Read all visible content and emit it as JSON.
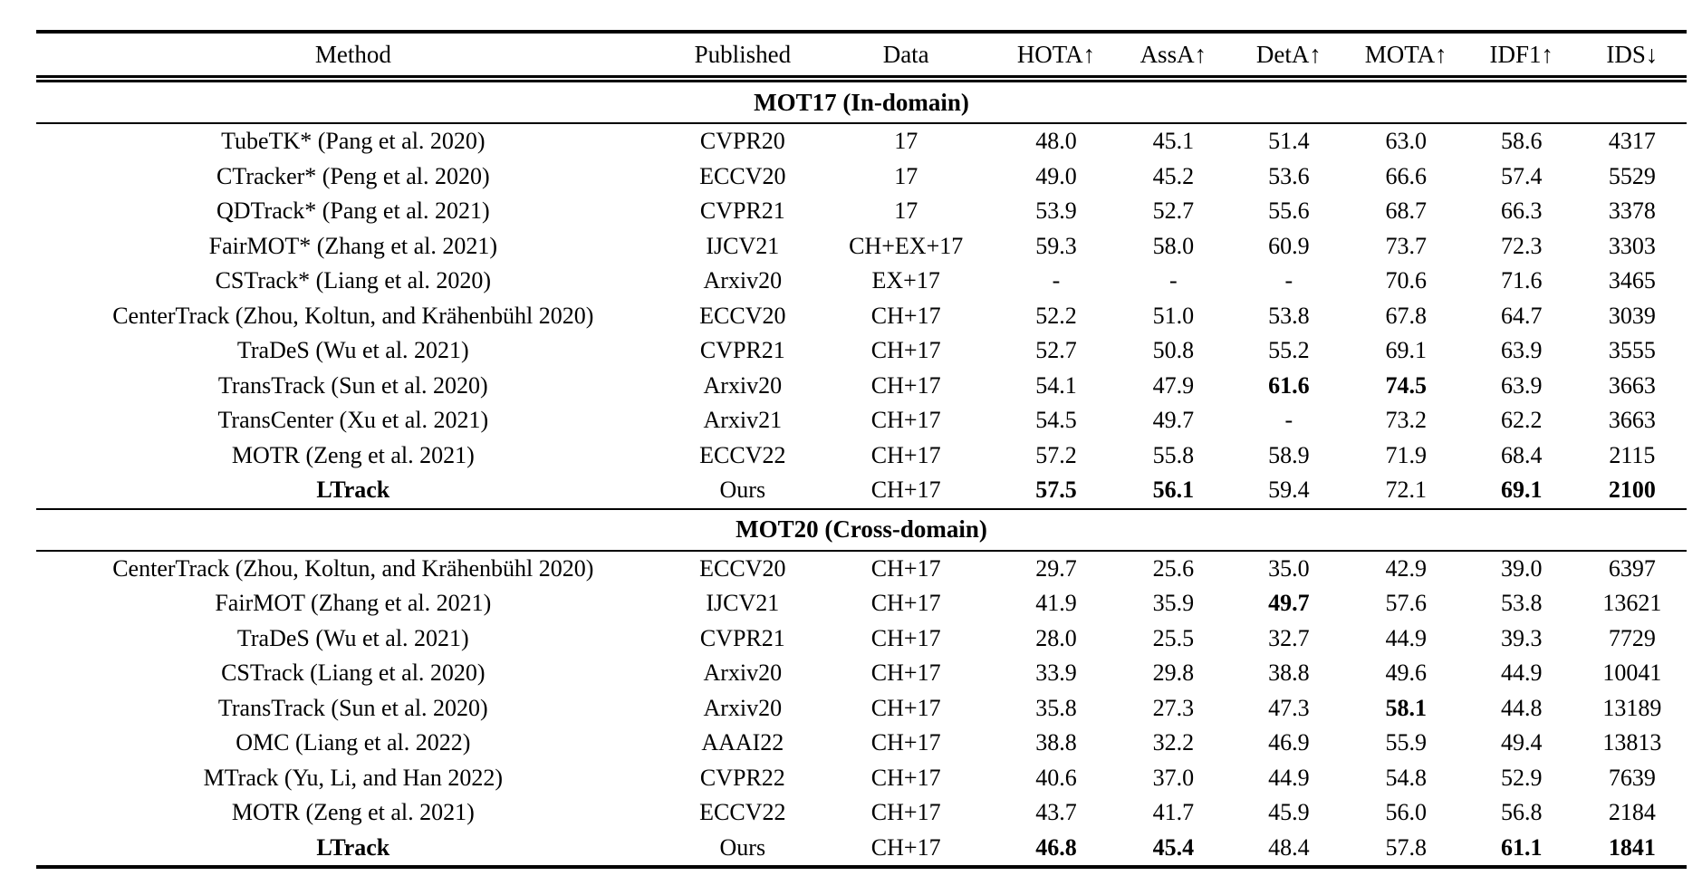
{
  "page": {
    "background_color": "#ffffff",
    "text_color": "#000000"
  },
  "table": {
    "columns": [
      "Method",
      "Published",
      "Data",
      "HOTA↑",
      "AssA↑",
      "DetA↑",
      "MOTA↑",
      "IDF1↑",
      "IDS↓"
    ],
    "sections": [
      {
        "title": "MOT17 (In-domain)",
        "rows": [
          {
            "cells": [
              "TubeTK* (Pang et al. 2020)",
              "CVPR20",
              "17",
              "48.0",
              "45.1",
              "51.4",
              "63.0",
              "58.6",
              "4317"
            ],
            "bold": []
          },
          {
            "cells": [
              "CTracker* (Peng et al. 2020)",
              "ECCV20",
              "17",
              "49.0",
              "45.2",
              "53.6",
              "66.6",
              "57.4",
              "5529"
            ],
            "bold": []
          },
          {
            "cells": [
              "QDTrack* (Pang et al. 2021)",
              "CVPR21",
              "17",
              "53.9",
              "52.7",
              "55.6",
              "68.7",
              "66.3",
              "3378"
            ],
            "bold": []
          },
          {
            "cells": [
              "FairMOT* (Zhang et al. 2021)",
              "IJCV21",
              "CH+EX+17",
              "59.3",
              "58.0",
              "60.9",
              "73.7",
              "72.3",
              "3303"
            ],
            "bold": []
          },
          {
            "cells": [
              "CSTrack* (Liang et al. 2020)",
              "Arxiv20",
              "EX+17",
              "-",
              "-",
              "-",
              "70.6",
              "71.6",
              "3465"
            ],
            "bold": []
          },
          {
            "cells": [
              "CenterTrack (Zhou, Koltun, and Krähenbühl 2020)",
              "ECCV20",
              "CH+17",
              "52.2",
              "51.0",
              "53.8",
              "67.8",
              "64.7",
              "3039"
            ],
            "bold": []
          },
          {
            "cells": [
              "TraDeS (Wu et al. 2021)",
              "CVPR21",
              "CH+17",
              "52.7",
              "50.8",
              "55.2",
              "69.1",
              "63.9",
              "3555"
            ],
            "bold": []
          },
          {
            "cells": [
              "TransTrack (Sun et al. 2020)",
              "Arxiv20",
              "CH+17",
              "54.1",
              "47.9",
              "61.6",
              "74.5",
              "63.9",
              "3663"
            ],
            "bold": [
              5,
              6
            ]
          },
          {
            "cells": [
              "TransCenter (Xu et al. 2021)",
              "Arxiv21",
              "CH+17",
              "54.5",
              "49.7",
              "-",
              "73.2",
              "62.2",
              "3663"
            ],
            "bold": []
          },
          {
            "cells": [
              "MOTR (Zeng et al. 2021)",
              "ECCV22",
              "CH+17",
              "57.2",
              "55.8",
              "58.9",
              "71.9",
              "68.4",
              "2115"
            ],
            "bold": []
          },
          {
            "cells": [
              "LTrack",
              "Ours",
              "CH+17",
              "57.5",
              "56.1",
              "59.4",
              "72.1",
              "69.1",
              "2100"
            ],
            "bold": [
              0,
              3,
              4,
              7,
              8
            ]
          }
        ]
      },
      {
        "title": "MOT20 (Cross-domain)",
        "rows": [
          {
            "cells": [
              "CenterTrack (Zhou, Koltun, and Krähenbühl 2020)",
              "ECCV20",
              "CH+17",
              "29.7",
              "25.6",
              "35.0",
              "42.9",
              "39.0",
              "6397"
            ],
            "bold": []
          },
          {
            "cells": [
              "FairMOT (Zhang et al. 2021)",
              "IJCV21",
              "CH+17",
              "41.9",
              "35.9",
              "49.7",
              "57.6",
              "53.8",
              "13621"
            ],
            "bold": [
              5
            ]
          },
          {
            "cells": [
              "TraDeS (Wu et al. 2021)",
              "CVPR21",
              "CH+17",
              "28.0",
              "25.5",
              "32.7",
              "44.9",
              "39.3",
              "7729"
            ],
            "bold": []
          },
          {
            "cells": [
              "CSTrack (Liang et al. 2020)",
              "Arxiv20",
              "CH+17",
              "33.9",
              "29.8",
              "38.8",
              "49.6",
              "44.9",
              "10041"
            ],
            "bold": []
          },
          {
            "cells": [
              "TransTrack (Sun et al. 2020)",
              "Arxiv20",
              "CH+17",
              "35.8",
              "27.3",
              "47.3",
              "58.1",
              "44.8",
              "13189"
            ],
            "bold": [
              6
            ]
          },
          {
            "cells": [
              "OMC (Liang et al. 2022)",
              "AAAI22",
              "CH+17",
              "38.8",
              "32.2",
              "46.9",
              "55.9",
              "49.4",
              "13813"
            ],
            "bold": []
          },
          {
            "cells": [
              "MTrack (Yu, Li, and Han 2022)",
              "CVPR22",
              "CH+17",
              "40.6",
              "37.0",
              "44.9",
              "54.8",
              "52.9",
              "7639"
            ],
            "bold": []
          },
          {
            "cells": [
              "MOTR (Zeng et al. 2021)",
              "ECCV22",
              "CH+17",
              "43.7",
              "41.7",
              "45.9",
              "56.0",
              "56.8",
              "2184"
            ],
            "bold": []
          },
          {
            "cells": [
              "LTrack",
              "Ours",
              "CH+17",
              "46.8",
              "45.4",
              "48.4",
              "57.8",
              "61.1",
              "1841"
            ],
            "bold": [
              0,
              3,
              4,
              7,
              8
            ]
          }
        ]
      }
    ]
  }
}
